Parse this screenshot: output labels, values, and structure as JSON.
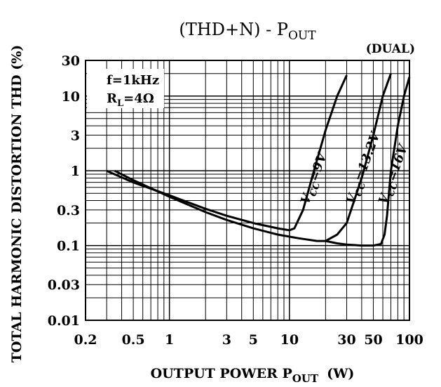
{
  "chart_data": {
    "type": "line",
    "title": {
      "main": "(THD+N) - P",
      "sub": "OUT"
    },
    "corner_note": "(DUAL)",
    "xlabel": {
      "main": "OUTPUT POWER P",
      "sub": "OUT",
      "unit": "(W)"
    },
    "ylabel": "TOTAL HARMONIC DISTORTION THD (%)",
    "x_scale": "log",
    "y_scale": "log",
    "xlim": [
      0.2,
      100
    ],
    "ylim": [
      0.01,
      30
    ],
    "x_ticks": [
      {
        "value": 0.2,
        "label": "0.2"
      },
      {
        "value": 0.5,
        "label": "0.5"
      },
      {
        "value": 1,
        "label": "1"
      },
      {
        "value": 3,
        "label": "3"
      },
      {
        "value": 5,
        "label": "5"
      },
      {
        "value": 10,
        "label": "10"
      },
      {
        "value": 30,
        "label": "30"
      },
      {
        "value": 50,
        "label": "50"
      },
      {
        "value": 100,
        "label": "100"
      }
    ],
    "y_ticks": [
      {
        "value": 30,
        "label": "30"
      },
      {
        "value": 10,
        "label": "10"
      },
      {
        "value": 3,
        "label": "3"
      },
      {
        "value": 1,
        "label": "1"
      },
      {
        "value": 0.3,
        "label": "0.3"
      },
      {
        "value": 0.1,
        "label": "0.1"
      },
      {
        "value": 0.03,
        "label": "0.03"
      },
      {
        "value": 0.01,
        "label": "0.01"
      }
    ],
    "grid": true,
    "conditions": [
      {
        "main": "f=1kHz",
        "sub": ""
      },
      {
        "main": "R",
        "sub": "L",
        "rest": "=4Ω"
      }
    ],
    "series": [
      {
        "name": "V",
        "name_sub": "CC",
        "name_rest": "=9V",
        "points": [
          [
            0.3,
            1.0
          ],
          [
            0.5,
            0.7
          ],
          [
            1,
            0.47
          ],
          [
            2,
            0.31
          ],
          [
            3,
            0.25
          ],
          [
            5,
            0.2
          ],
          [
            8,
            0.17
          ],
          [
            10,
            0.16
          ],
          [
            11,
            0.17
          ],
          [
            13,
            0.3
          ],
          [
            16,
            1.0
          ],
          [
            20,
            3.5
          ],
          [
            25,
            10
          ],
          [
            30,
            19
          ]
        ]
      },
      {
        "name": "V",
        "name_sub": "CC",
        "name_rest": "=13.2V",
        "points": [
          [
            0.35,
            1.0
          ],
          [
            0.5,
            0.75
          ],
          [
            1,
            0.45
          ],
          [
            2,
            0.28
          ],
          [
            3,
            0.22
          ],
          [
            5,
            0.17
          ],
          [
            8,
            0.14
          ],
          [
            12,
            0.125
          ],
          [
            17,
            0.115
          ],
          [
            20,
            0.115
          ],
          [
            25,
            0.14
          ],
          [
            30,
            0.2
          ],
          [
            40,
            0.8
          ],
          [
            50,
            3
          ],
          [
            60,
            10
          ],
          [
            70,
            20
          ]
        ]
      },
      {
        "name": "V",
        "name_sub": "CC",
        "name_rest": "=16V",
        "points": [
          [
            20,
            0.115
          ],
          [
            25,
            0.107
          ],
          [
            30,
            0.103
          ],
          [
            40,
            0.1
          ],
          [
            50,
            0.1
          ],
          [
            58,
            0.105
          ],
          [
            62,
            0.14
          ],
          [
            65,
            0.25
          ],
          [
            70,
            1.0
          ],
          [
            80,
            4
          ],
          [
            90,
            10
          ],
          [
            100,
            18
          ]
        ]
      }
    ]
  }
}
